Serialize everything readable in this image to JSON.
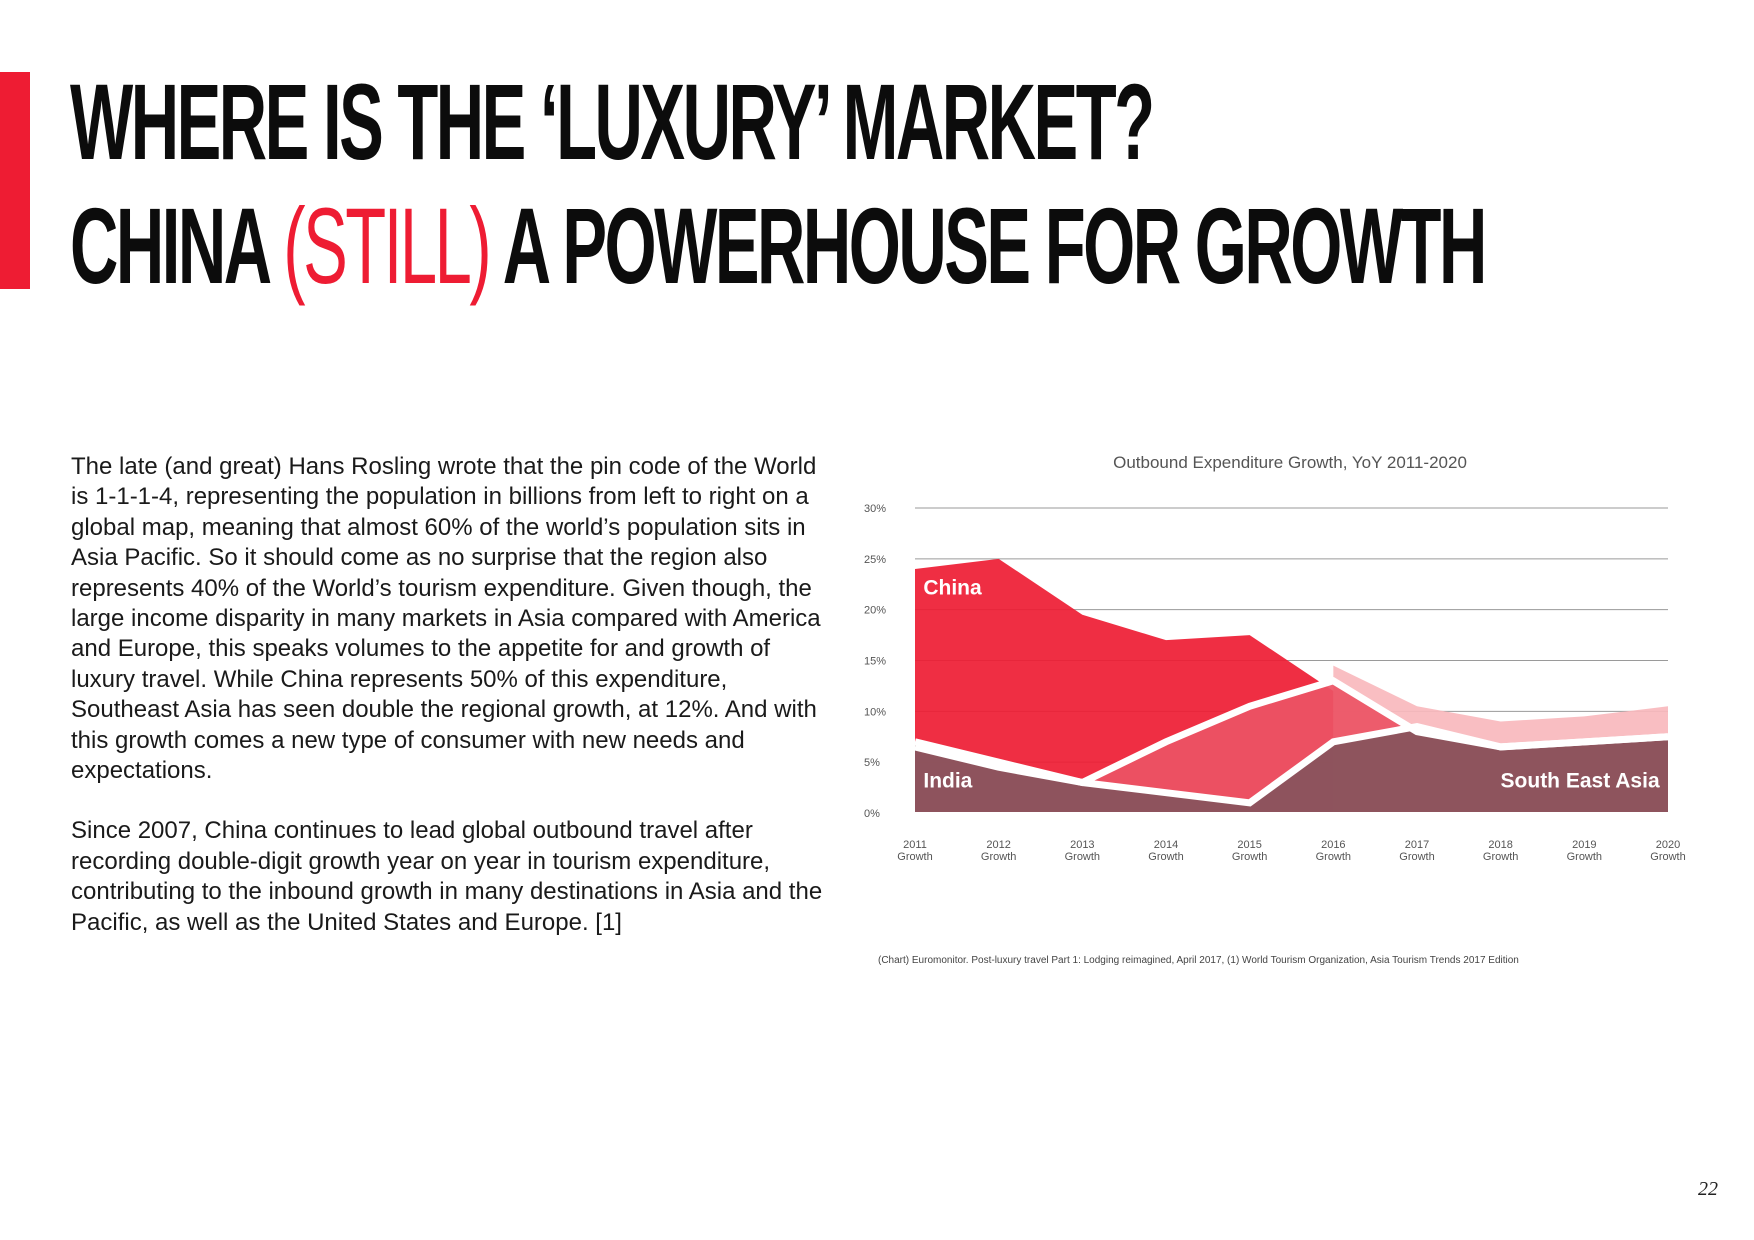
{
  "headline": {
    "line1": "WHERE IS THE ‘LUXURY’ MARKET?",
    "line2_a": "CHINA ",
    "line2_highlight": "(STILL)",
    "line2_b": " A POWERHOUSE FOR GROWTH"
  },
  "body": {
    "paragraph1": "The late (and great) Hans Rosling wrote that the pin code of the World is 1-1-1-4, representing the population in billions from left to right on a global map, meaning that almost 60% of the world’s population sits in Asia Pacific. So it should come as no surprise that the region also represents 40% of the World’s tourism expenditure. Given though, the large income disparity in many markets in Asia compared with America and Europe, this speaks volumes to the appetite for and growth of luxury travel. While China represents 50% of this expenditure, Southeast Asia has seen double the regional growth, at 12%. And with this growth comes a new type of consumer with new needs and expectations.",
    "paragraph2": "Since 2007, China continues to lead global outbound travel after recording double-digit growth year on year in tourism expenditure, contributing to the inbound growth in many destinations in Asia and the Pacific, as well as the United States and Europe. [1]"
  },
  "chart_data": {
    "type": "area",
    "title": "Outbound Expenditure Growth, YoY 2011-2020",
    "categories": [
      "2011 Growth",
      "2012 Growth",
      "2013 Growth",
      "2014 Growth",
      "2015 Growth",
      "2016 Growth",
      "2017 Growth",
      "2018 Growth",
      "2019 Growth",
      "2020 Growth"
    ],
    "category_lines": [
      [
        "2011",
        "Growth"
      ],
      [
        "2012",
        "Growth"
      ],
      [
        "2013",
        "Growth"
      ],
      [
        "2014",
        "Growth"
      ],
      [
        "2015",
        "Growth"
      ],
      [
        "2016",
        "Growth"
      ],
      [
        "2017",
        "Growth"
      ],
      [
        "2018",
        "Growth"
      ],
      [
        "2019",
        "Growth"
      ],
      [
        "2020",
        "Growth"
      ]
    ],
    "y_ticks": [
      "0%",
      "5%",
      "10%",
      "15%",
      "20%",
      "25%",
      "30%"
    ],
    "ylim": [
      0,
      30
    ],
    "grid": true,
    "series": [
      {
        "name": "China",
        "values": [
          24,
          25,
          19.5,
          17,
          17.5,
          12,
          null,
          null,
          null,
          null
        ],
        "color": "#ee1c33"
      },
      {
        "name": "",
        "values": [
          null,
          null,
          null,
          null,
          null,
          14.5,
          10.5,
          9,
          9.5,
          10.5
        ],
        "color": "#f8b8bd"
      },
      {
        "name": "India",
        "values": [
          6.5,
          4.5,
          3,
          7,
          10.5,
          13,
          8,
          6.5,
          7,
          7.5
        ],
        "color": "#ec5465"
      },
      {
        "name": "South East Asia",
        "values": [
          7,
          5,
          3,
          2,
          1,
          7,
          8.5,
          6.5,
          7,
          7.5
        ],
        "color": "#85545c"
      }
    ],
    "colors": {
      "grid": "#9a9a9a",
      "line": "#ffffff",
      "tick_text": "#555555"
    }
  },
  "source_note": "(Chart) Euromonitor. Post-luxury travel Part 1: Lodging reimagined, April 2017, (1) World Tourism Organization, Asia Tourism Trends 2017 Edition",
  "page_number": "22"
}
